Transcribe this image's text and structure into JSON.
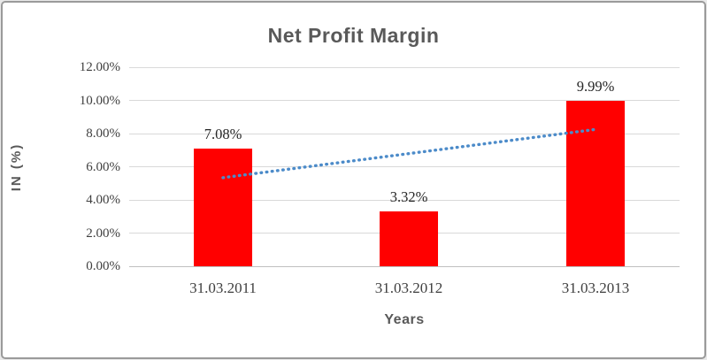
{
  "chart_data": {
    "type": "bar",
    "title": "Net Profit Margin",
    "categories": [
      "31.03.2011",
      "31.03.2012",
      "31.03.2013"
    ],
    "values": [
      7.08,
      3.32,
      9.99
    ],
    "value_labels": [
      "7.08%",
      "3.32%",
      "9.99%"
    ],
    "xlabel": "Years",
    "ylabel": "IN (%)",
    "ylim": [
      0,
      12
    ],
    "ytick_step": 2,
    "yticks": [
      {
        "label": "12.00%",
        "value": 12
      },
      {
        "label": "10.00%",
        "value": 10
      },
      {
        "label": "8.00%",
        "value": 8
      },
      {
        "label": "6.00%",
        "value": 6
      },
      {
        "label": "4.00%",
        "value": 4
      },
      {
        "label": "2.00%",
        "value": 2
      },
      {
        "label": "0.00%",
        "value": 0
      }
    ],
    "grid": true,
    "legend": "none",
    "trendline": {
      "style": "dotted-linear",
      "start_pct": 5.34,
      "end_pct": 8.25
    },
    "colors": {
      "bar": "#FF0000",
      "trendline": "#4C8BC9",
      "title_text": "#595959",
      "axis_title_text": "#595959",
      "tick_text": "#3F3F3F",
      "data_label_text": "#262626",
      "gridline": "#D9D9D9",
      "axis_line": "#BFBFBF",
      "frame_background": "#FFFFFF"
    }
  }
}
